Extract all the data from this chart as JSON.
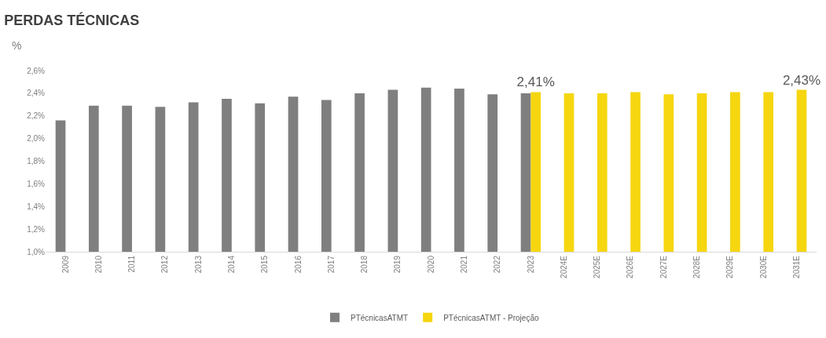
{
  "chart_data": {
    "type": "bar",
    "title": "PERDAS TÉCNICAS",
    "ylabel": "%",
    "categories": [
      "2009",
      "2010",
      "2011",
      "2012",
      "2013",
      "2014",
      "2015",
      "2016",
      "2017",
      "2018",
      "2019",
      "2020",
      "2021",
      "2022",
      "2023",
      "2024E",
      "2025E",
      "2026E",
      "2027E",
      "2028E",
      "2029E",
      "2030E",
      "2031E"
    ],
    "series": [
      {
        "name": "PTécnicasATMT",
        "color": "#7f7f7f",
        "values": [
          2.16,
          2.29,
          2.29,
          2.28,
          2.32,
          2.35,
          2.31,
          2.37,
          2.34,
          2.4,
          2.43,
          2.45,
          2.44,
          2.39,
          2.4,
          null,
          null,
          null,
          null,
          null,
          null,
          null,
          null
        ]
      },
      {
        "name": "PTécnicasATMT - Projeção",
        "color": "#f5d60f",
        "values": [
          null,
          null,
          null,
          null,
          null,
          null,
          null,
          null,
          null,
          null,
          null,
          null,
          null,
          null,
          2.41,
          2.4,
          2.4,
          2.41,
          2.39,
          2.4,
          2.41,
          2.41,
          2.43
        ],
        "value_labels": [
          null,
          null,
          null,
          null,
          null,
          null,
          null,
          null,
          null,
          null,
          null,
          null,
          null,
          null,
          "2,41%",
          null,
          null,
          null,
          null,
          null,
          null,
          null,
          "2,43%"
        ]
      }
    ],
    "ylim": [
      1.0,
      2.6
    ],
    "yticks": [
      {
        "value": 1.0,
        "label": "1,0%"
      },
      {
        "value": 1.2,
        "label": "1,2%"
      },
      {
        "value": 1.4,
        "label": "1,4%"
      },
      {
        "value": 1.6,
        "label": "1,6%"
      },
      {
        "value": 1.8,
        "label": "1,8%"
      },
      {
        "value": 2.0,
        "label": "2,0%"
      },
      {
        "value": 2.2,
        "label": "2,2%"
      },
      {
        "value": 2.4,
        "label": "2,4%"
      },
      {
        "value": 2.6,
        "label": "2,6%"
      }
    ],
    "grid": false,
    "legend": "bottom"
  }
}
